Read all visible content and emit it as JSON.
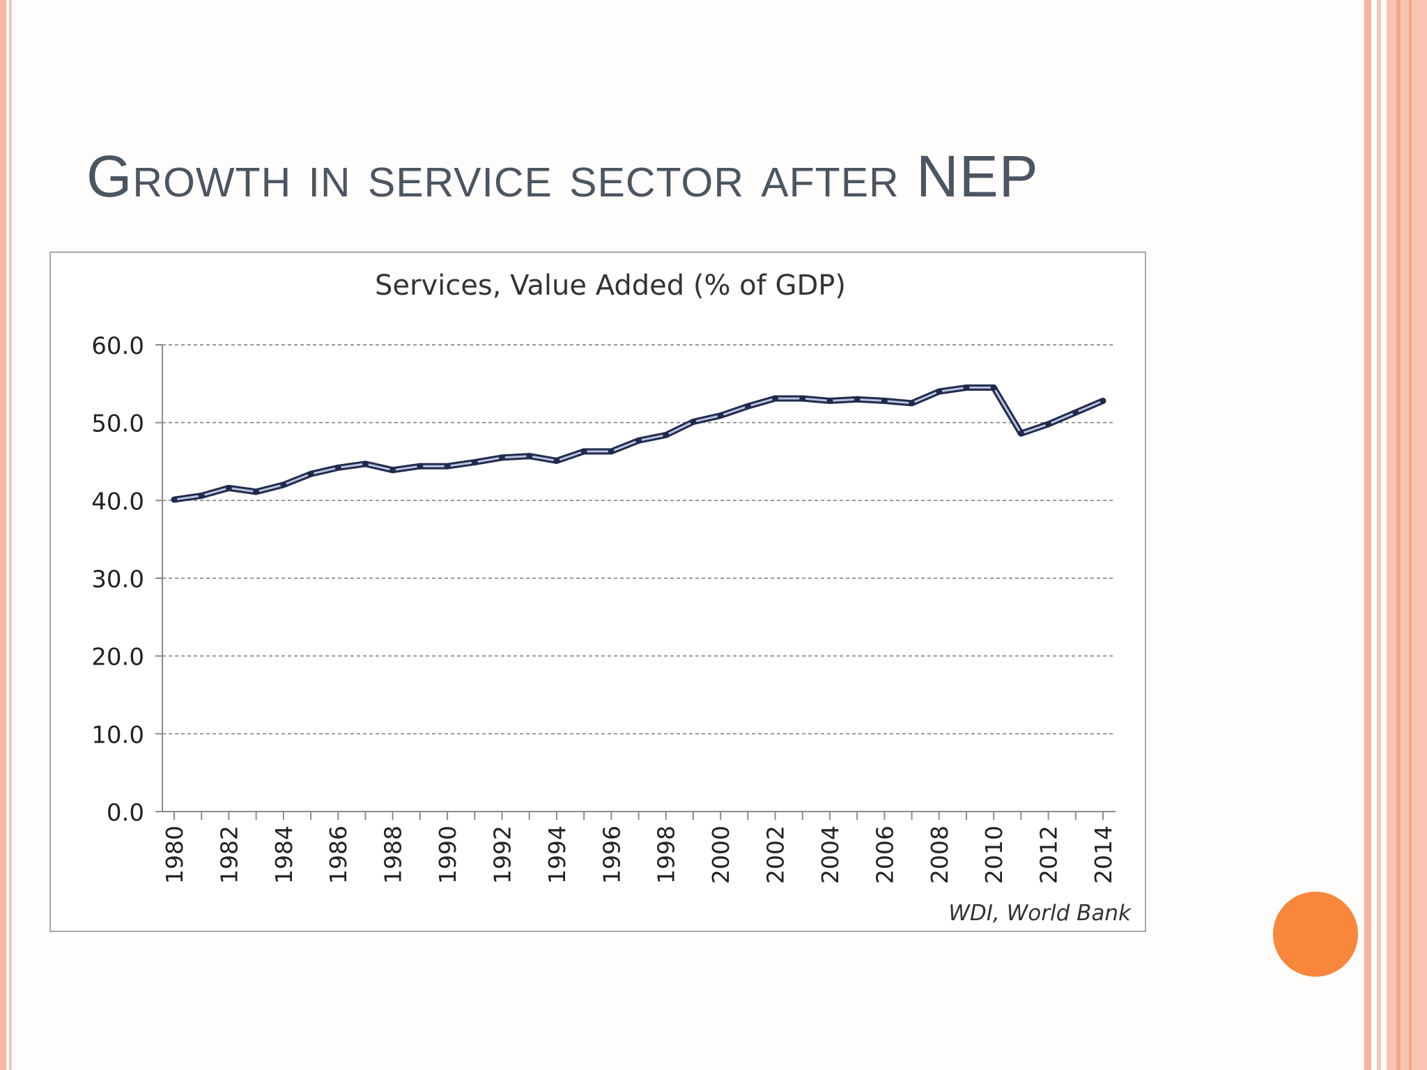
{
  "slide": {
    "title": "Growth in service sector after NEP",
    "colors": {
      "accent": "#f8873b",
      "border": "#f7b7a4",
      "title": "#4c5562",
      "line": "#1f2a4d"
    }
  },
  "chart_data": {
    "type": "line",
    "title": "Services, Value Added (% of GDP)",
    "xlabel": "",
    "ylabel": "",
    "source_note": "WDI, World Bank",
    "ylim": [
      0,
      60
    ],
    "y_ticks": [
      "0.0",
      "10.0",
      "20.0",
      "30.0",
      "40.0",
      "50.0",
      "60.0"
    ],
    "x_tick_labels": [
      "1980",
      "1982",
      "1984",
      "1986",
      "1988",
      "1990",
      "1992",
      "1994",
      "1996",
      "1998",
      "2000",
      "2002",
      "2004",
      "2006",
      "2008",
      "2010",
      "2012",
      "2014"
    ],
    "grid": true,
    "legend": "none",
    "x": [
      1980,
      1981,
      1982,
      1983,
      1984,
      1985,
      1986,
      1987,
      1988,
      1989,
      1990,
      1991,
      1992,
      1993,
      1994,
      1995,
      1996,
      1997,
      1998,
      1999,
      2000,
      2001,
      2002,
      2003,
      2004,
      2005,
      2006,
      2007,
      2008,
      2009,
      2010,
      2011,
      2012,
      2013,
      2014
    ],
    "series": [
      {
        "name": "",
        "values": [
          40.1,
          40.6,
          41.6,
          41.1,
          42.0,
          43.4,
          44.2,
          44.7,
          43.9,
          44.4,
          44.4,
          44.9,
          45.5,
          45.7,
          45.1,
          46.3,
          46.3,
          47.7,
          48.4,
          50.1,
          50.9,
          52.1,
          53.1,
          53.1,
          52.8,
          53.0,
          52.8,
          52.5,
          54.0,
          54.5,
          54.5,
          48.6,
          49.8,
          51.3,
          52.8
        ]
      }
    ]
  }
}
